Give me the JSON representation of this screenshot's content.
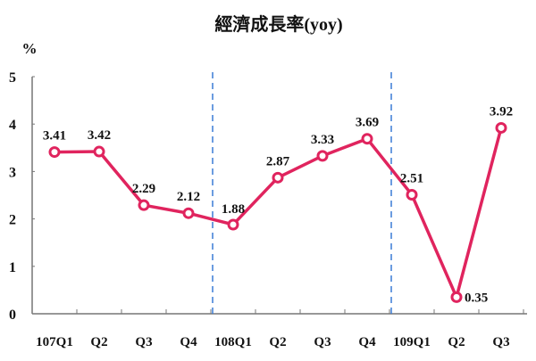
{
  "chart_data": {
    "type": "line",
    "title": "經濟成長率(yoy)",
    "ylabel": "%",
    "xlabel": "",
    "categories": [
      "107Q1",
      "Q2",
      "Q3",
      "Q4",
      "108Q1",
      "Q2",
      "Q3",
      "Q4",
      "109Q1",
      "Q2",
      "Q3"
    ],
    "series": [
      {
        "values": [
          3.41,
          3.42,
          2.29,
          2.12,
          1.88,
          2.87,
          3.33,
          3.69,
          2.51,
          0.35,
          3.92
        ],
        "color": "#e0245e"
      }
    ],
    "data_labels": [
      "3.41",
      "3.42",
      "2.29",
      "2.12",
      "1.88",
      "2.87",
      "3.33",
      "3.69",
      "2.51",
      "0.35",
      "3.92"
    ],
    "yticks": [
      "0",
      "1",
      "2",
      "3",
      "4",
      "5"
    ],
    "ylim": [
      0,
      5
    ],
    "grid": false,
    "year_separators": [
      "107Q4|108Q1",
      "108Q4|109Q1"
    ],
    "separator_color": "#3a7bd5"
  }
}
